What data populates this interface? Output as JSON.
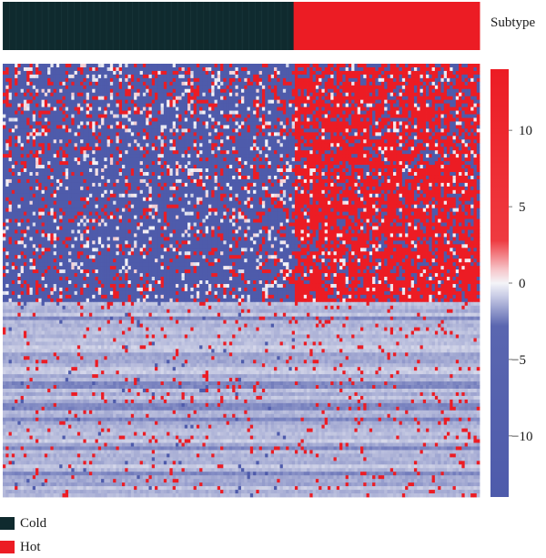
{
  "chart_data": {
    "type": "heatmap",
    "annotation": {
      "label": "Subtype",
      "groups": [
        {
          "name": "Cold",
          "color": "#0f2a2e",
          "fraction": 0.61
        },
        {
          "name": "Hot",
          "color": "#ec1c24",
          "fraction": 0.39
        }
      ]
    },
    "colorbar": {
      "min": -14,
      "max": 14,
      "ticks": [
        10,
        5,
        0,
        -5,
        -10
      ],
      "tick_labels": [
        "10",
        "5",
        "0",
        "−5",
        "−10"
      ],
      "colors": {
        "low": "#4e5bab",
        "mid": "#f4f4f8",
        "high": "#ec1c24"
      }
    },
    "matrix": {
      "rows": 120,
      "cols": 160,
      "hot_upregulated_row_fraction": 0.55,
      "description_values": "upper block: cold samples mostly negative (blue), hot samples mostly positive (red); lower block: near-zero (light lavender) with sparse red outliers"
    }
  },
  "legend": {
    "items": [
      {
        "label": "Cold",
        "color": "#0f2a2e"
      },
      {
        "label": "Hot",
        "color": "#ec1c24"
      }
    ]
  }
}
